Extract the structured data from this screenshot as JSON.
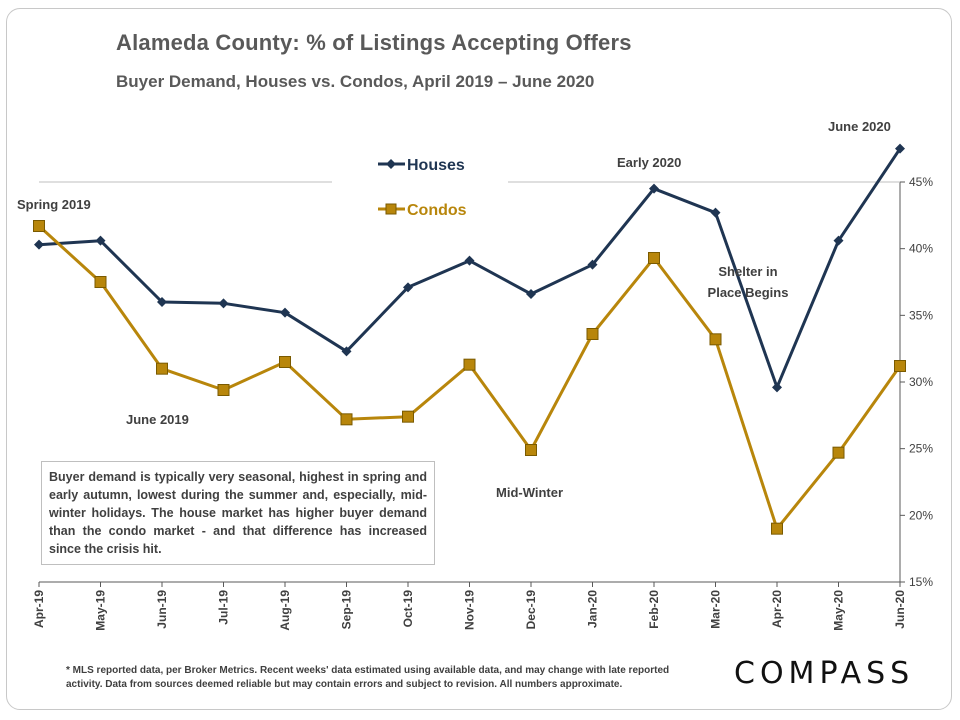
{
  "title": "Alameda County: % of Listings Accepting Offers",
  "subtitle": "Buyer Demand, Houses vs. Condos, April 2019 – June 2020",
  "note": "Buyer demand is typically very seasonal, highest in spring and early autumn, lowest during the summer and, especially, mid-winter holidays. The house market has higher buyer demand than the condo market - and that difference has increased since the crisis hit.",
  "footnote": "* MLS reported data, per Broker Metrics. Recent weeks' data estimated using available data, and may change with late reported activity. Data from sources deemed reliable but may contain errors and subject to revision. All numbers approximate.",
  "logo": "COMPASS",
  "colors": {
    "houses": "#1f3552",
    "condos": "#b8860b",
    "axis": "#595959",
    "text": "#404040"
  },
  "chart_data": {
    "type": "line",
    "title": "Alameda County: % of Listings Accepting Offers",
    "subtitle": "Buyer Demand, Houses vs. Condos, April 2019 – June 2020",
    "categories": [
      "Apr-19",
      "May-19",
      "Jun-19",
      "Jul-19",
      "Aug-19",
      "Sep-19",
      "Oct-19",
      "Nov-19",
      "Dec-19",
      "Jan-20",
      "Feb-20",
      "Mar-20",
      "Apr-20",
      "May-20",
      "Jun-20"
    ],
    "series": [
      {
        "name": "Houses",
        "marker": "diamond",
        "color": "#1f3552",
        "values": [
          40.3,
          40.6,
          36.0,
          35.9,
          35.2,
          32.3,
          37.1,
          39.1,
          36.6,
          38.8,
          44.5,
          42.7,
          29.6,
          40.6,
          47.5
        ]
      },
      {
        "name": "Condos",
        "marker": "square",
        "color": "#b8860b",
        "values": [
          41.7,
          37.5,
          31.0,
          29.4,
          31.5,
          27.2,
          27.4,
          31.3,
          24.9,
          33.6,
          39.3,
          33.2,
          19.0,
          24.7,
          31.2
        ]
      }
    ],
    "ylim": [
      15,
      45
    ],
    "y_axis_position": "right",
    "y_ticks": [
      "15%",
      "20%",
      "25%",
      "30%",
      "35%",
      "40%",
      "45%"
    ],
    "y_tick_values": [
      15,
      20,
      25,
      30,
      35,
      40,
      45
    ],
    "grid": false,
    "legend_position": "top-center",
    "annotations": [
      {
        "text": "Spring 2019"
      },
      {
        "text": "June 2019"
      },
      {
        "text": "Mid-Winter"
      },
      {
        "text": "Early 2020"
      },
      {
        "text": "Shelter in",
        "text2": "Place Begins"
      },
      {
        "text": "June 2020"
      }
    ]
  }
}
